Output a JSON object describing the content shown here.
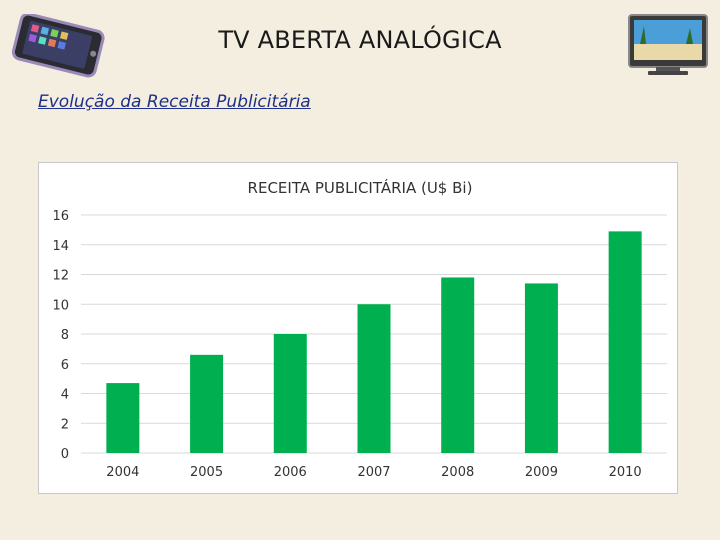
{
  "slide": {
    "title": "TV ABERTA ANALÓGICA",
    "subtitle": "Evolução da Receita Publicitária"
  },
  "icons": {
    "left": "smartphone-icon",
    "right": "television-icon"
  },
  "colors": {
    "bar": "#00b050",
    "background": "#f3eedf",
    "subtitle": "#1f2f8a"
  },
  "chart_data": {
    "type": "bar",
    "title": "RECEITA PUBLICITÁRIA (U$ Bi)",
    "categories": [
      "2004",
      "2005",
      "2006",
      "2007",
      "2008",
      "2009",
      "2010"
    ],
    "values": [
      4.7,
      6.6,
      8.0,
      10.0,
      11.8,
      11.4,
      14.9
    ],
    "ylim": [
      0,
      16
    ],
    "yticks": [
      0,
      2,
      4,
      6,
      8,
      10,
      12,
      14,
      16
    ],
    "grid": true,
    "legend": "none"
  }
}
